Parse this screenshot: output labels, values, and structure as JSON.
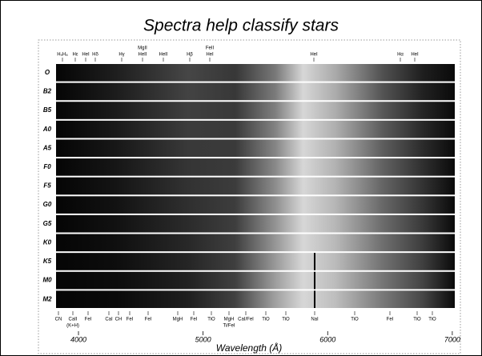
{
  "title": "Spectra help classify stars",
  "classes": [
    "O",
    "B2",
    "B5",
    "A0",
    "A5",
    "F0",
    "F5",
    "G0",
    "G5",
    "K0",
    "K5",
    "M0",
    "M2"
  ],
  "top_lines": [
    [
      "H₉H₈"
    ],
    [
      "Hε"
    ],
    [
      "HeI"
    ],
    [
      "Hδ"
    ],
    [
      "Hγ"
    ],
    [
      "MgII",
      "HeII"
    ],
    [
      "HeII"
    ],
    [
      "Hβ"
    ],
    [
      "FeII",
      "HeI"
    ],
    [
      "HeI"
    ],
    [
      "Hα"
    ],
    [
      "HeI"
    ]
  ],
  "bottom_lines": [
    [
      "CN"
    ],
    [
      "CaII",
      "(K+H)"
    ],
    [
      "FeI"
    ],
    [
      "CaI"
    ],
    [
      "CH"
    ],
    [
      "FeI"
    ],
    [
      "FeI"
    ],
    [
      "MgH"
    ],
    [
      "FeI"
    ],
    [
      "TiO"
    ],
    [
      "MgH",
      "Ti/FeI"
    ],
    [
      "CaI/FeI"
    ],
    [
      "TiO"
    ],
    [
      "TiO"
    ],
    [
      "NaI"
    ],
    [
      "TiO"
    ],
    [
      "FeI"
    ],
    [
      "TiO"
    ],
    [
      "TiO"
    ]
  ],
  "axis": {
    "label": "Wavelength (Å)",
    "xlim": [
      3820,
      7020
    ],
    "xticks": [
      4000,
      5000,
      6000,
      7000
    ]
  }
}
